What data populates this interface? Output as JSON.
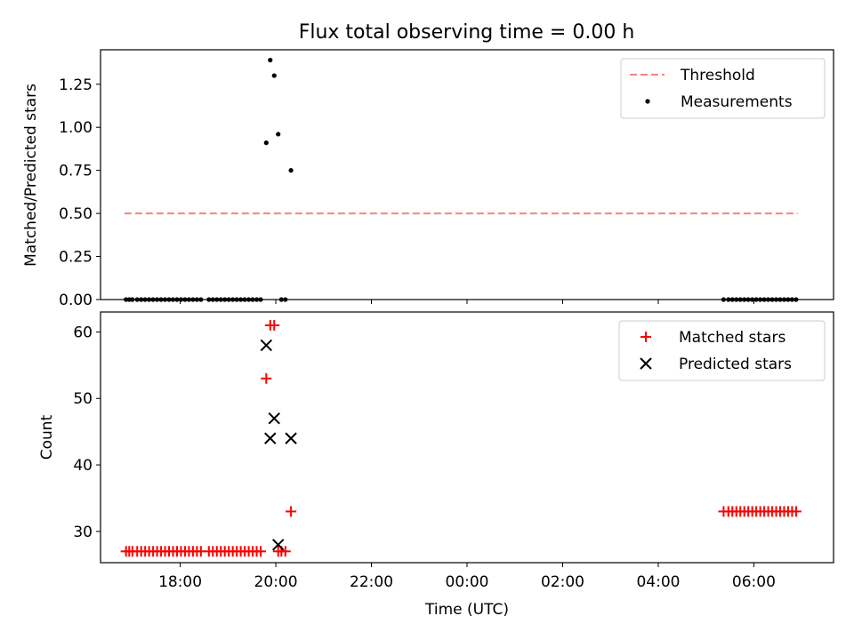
{
  "figure": {
    "title": "Flux total observing time = 0.00 h",
    "xlabel": "Time (UTC)"
  },
  "chart_data": [
    {
      "type": "scatter",
      "ylabel": "Matched/Predicted stars",
      "ylim": [
        0,
        1.45
      ],
      "yticks": [
        "0.00",
        "0.25",
        "0.50",
        "0.75",
        "1.00",
        "1.25"
      ],
      "xlim": [
        "16:20",
        "07:40"
      ],
      "legend_position": "top-right",
      "threshold": {
        "name": "Threshold",
        "value": 0.5,
        "x_start": "16:50",
        "x_end": "06:55",
        "color": "#ff7f7f"
      },
      "series": [
        {
          "name": "Measurements",
          "color": "#000000",
          "marker": "dot",
          "points": [
            [
              "16:52",
              0
            ],
            [
              "16:56",
              0
            ],
            [
              "17:00",
              0
            ],
            [
              "17:06",
              0
            ],
            [
              "17:11",
              0
            ],
            [
              "17:16",
              0
            ],
            [
              "17:21",
              0
            ],
            [
              "17:26",
              0
            ],
            [
              "17:31",
              0
            ],
            [
              "17:36",
              0
            ],
            [
              "17:41",
              0
            ],
            [
              "17:46",
              0
            ],
            [
              "17:51",
              0
            ],
            [
              "17:56",
              0
            ],
            [
              "18:01",
              0
            ],
            [
              "18:06",
              0
            ],
            [
              "18:11",
              0
            ],
            [
              "18:16",
              0
            ],
            [
              "18:21",
              0
            ],
            [
              "18:26",
              0
            ],
            [
              "18:36",
              0
            ],
            [
              "18:41",
              0
            ],
            [
              "18:46",
              0
            ],
            [
              "18:51",
              0
            ],
            [
              "18:56",
              0
            ],
            [
              "19:01",
              0
            ],
            [
              "19:06",
              0
            ],
            [
              "19:11",
              0
            ],
            [
              "19:16",
              0
            ],
            [
              "19:21",
              0
            ],
            [
              "19:26",
              0
            ],
            [
              "19:31",
              0
            ],
            [
              "19:36",
              0
            ],
            [
              "19:41",
              0
            ],
            [
              "19:48",
              0.91
            ],
            [
              "19:53",
              1.39
            ],
            [
              "19:58",
              1.3
            ],
            [
              "20:03",
              0.96
            ],
            [
              "20:07",
              0
            ],
            [
              "20:12",
              0
            ],
            [
              "20:19",
              0.75
            ],
            [
              "05:22",
              0
            ],
            [
              "05:28",
              0
            ],
            [
              "05:33",
              0
            ],
            [
              "05:38",
              0
            ],
            [
              "05:43",
              0
            ],
            [
              "05:48",
              0
            ],
            [
              "05:53",
              0
            ],
            [
              "05:58",
              0
            ],
            [
              "06:03",
              0
            ],
            [
              "06:08",
              0
            ],
            [
              "06:13",
              0
            ],
            [
              "06:18",
              0
            ],
            [
              "06:23",
              0
            ],
            [
              "06:28",
              0
            ],
            [
              "06:33",
              0
            ],
            [
              "06:38",
              0
            ],
            [
              "06:43",
              0
            ],
            [
              "06:48",
              0
            ],
            [
              "06:53",
              0
            ]
          ]
        }
      ]
    },
    {
      "type": "scatter",
      "ylabel": "Count",
      "ylim": [
        25.3,
        63
      ],
      "yticks": [
        "30",
        "40",
        "50",
        "60"
      ],
      "xlim": [
        "16:20",
        "07:40"
      ],
      "xticks": [
        "18:00",
        "20:00",
        "22:00",
        "00:00",
        "02:00",
        "04:00",
        "06:00"
      ],
      "legend_position": "top-right",
      "series": [
        {
          "name": "Matched stars",
          "color": "#ff0000",
          "marker": "plus",
          "points": [
            [
              "16:52",
              27
            ],
            [
              "16:56",
              27
            ],
            [
              "17:00",
              27
            ],
            [
              "17:06",
              27
            ],
            [
              "17:11",
              27
            ],
            [
              "17:16",
              27
            ],
            [
              "17:21",
              27
            ],
            [
              "17:26",
              27
            ],
            [
              "17:31",
              27
            ],
            [
              "17:36",
              27
            ],
            [
              "17:41",
              27
            ],
            [
              "17:46",
              27
            ],
            [
              "17:51",
              27
            ],
            [
              "17:56",
              27
            ],
            [
              "18:01",
              27
            ],
            [
              "18:06",
              27
            ],
            [
              "18:11",
              27
            ],
            [
              "18:16",
              27
            ],
            [
              "18:21",
              27
            ],
            [
              "18:26",
              27
            ],
            [
              "18:36",
              27
            ],
            [
              "18:41",
              27
            ],
            [
              "18:46",
              27
            ],
            [
              "18:51",
              27
            ],
            [
              "18:56",
              27
            ],
            [
              "19:01",
              27
            ],
            [
              "19:06",
              27
            ],
            [
              "19:11",
              27
            ],
            [
              "19:16",
              27
            ],
            [
              "19:21",
              27
            ],
            [
              "19:26",
              27
            ],
            [
              "19:31",
              27
            ],
            [
              "19:36",
              27
            ],
            [
              "19:41",
              27
            ],
            [
              "19:48",
              53
            ],
            [
              "19:53",
              61
            ],
            [
              "19:58",
              61
            ],
            [
              "20:03",
              27
            ],
            [
              "20:07",
              27
            ],
            [
              "20:12",
              27
            ],
            [
              "20:19",
              33
            ],
            [
              "05:22",
              33
            ],
            [
              "05:28",
              33
            ],
            [
              "05:33",
              33
            ],
            [
              "05:38",
              33
            ],
            [
              "05:43",
              33
            ],
            [
              "05:48",
              33
            ],
            [
              "05:53",
              33
            ],
            [
              "05:58",
              33
            ],
            [
              "06:03",
              33
            ],
            [
              "06:08",
              33
            ],
            [
              "06:13",
              33
            ],
            [
              "06:18",
              33
            ],
            [
              "06:23",
              33
            ],
            [
              "06:28",
              33
            ],
            [
              "06:33",
              33
            ],
            [
              "06:38",
              33
            ],
            [
              "06:43",
              33
            ],
            [
              "06:48",
              33
            ],
            [
              "06:53",
              33
            ]
          ]
        },
        {
          "name": "Predicted stars",
          "color": "#000000",
          "marker": "x",
          "points": [
            [
              "19:48",
              58
            ],
            [
              "19:53",
              44
            ],
            [
              "19:58",
              47
            ],
            [
              "20:03",
              28
            ],
            [
              "20:19",
              44
            ]
          ]
        }
      ]
    }
  ]
}
